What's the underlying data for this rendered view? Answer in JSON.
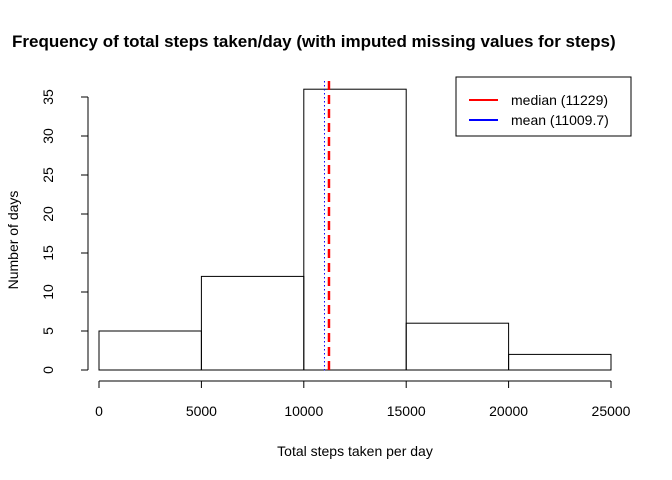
{
  "chart_data": {
    "type": "bar",
    "title": "Frequency of total steps taken/day (with imputed missing values for steps)",
    "xlabel": "Total steps taken per day",
    "ylabel": "Number of days",
    "bins": [
      {
        "from": 0,
        "to": 5000,
        "count": 5
      },
      {
        "from": 5000,
        "to": 10000,
        "count": 12
      },
      {
        "from": 10000,
        "to": 15000,
        "count": 36
      },
      {
        "from": 15000,
        "to": 20000,
        "count": 6
      },
      {
        "from": 20000,
        "to": 25000,
        "count": 2
      }
    ],
    "xlim": [
      0,
      25000
    ],
    "ylim": [
      0,
      35
    ],
    "x_ticks": [
      0,
      5000,
      10000,
      15000,
      20000,
      25000
    ],
    "x_tick_labels": [
      "0",
      "5000",
      "10000",
      "15000",
      "20000",
      "25000"
    ],
    "y_ticks": [
      0,
      5,
      10,
      15,
      20,
      25,
      30,
      35
    ],
    "y_tick_labels": [
      "0",
      "5",
      "10",
      "15",
      "20",
      "25",
      "30",
      "35"
    ],
    "reference_lines": [
      {
        "name": "median",
        "value": 11229,
        "color": "#ff0000",
        "style": "dashed"
      },
      {
        "name": "mean",
        "value": 11009.7,
        "color": "#0000ff",
        "style": "dotted"
      }
    ],
    "legend": {
      "position": "top-right",
      "entries": [
        {
          "label": "median (11229)",
          "color": "#ff0000"
        },
        {
          "label": "mean (11009.7)",
          "color": "#0000ff"
        }
      ]
    },
    "grid": false
  }
}
